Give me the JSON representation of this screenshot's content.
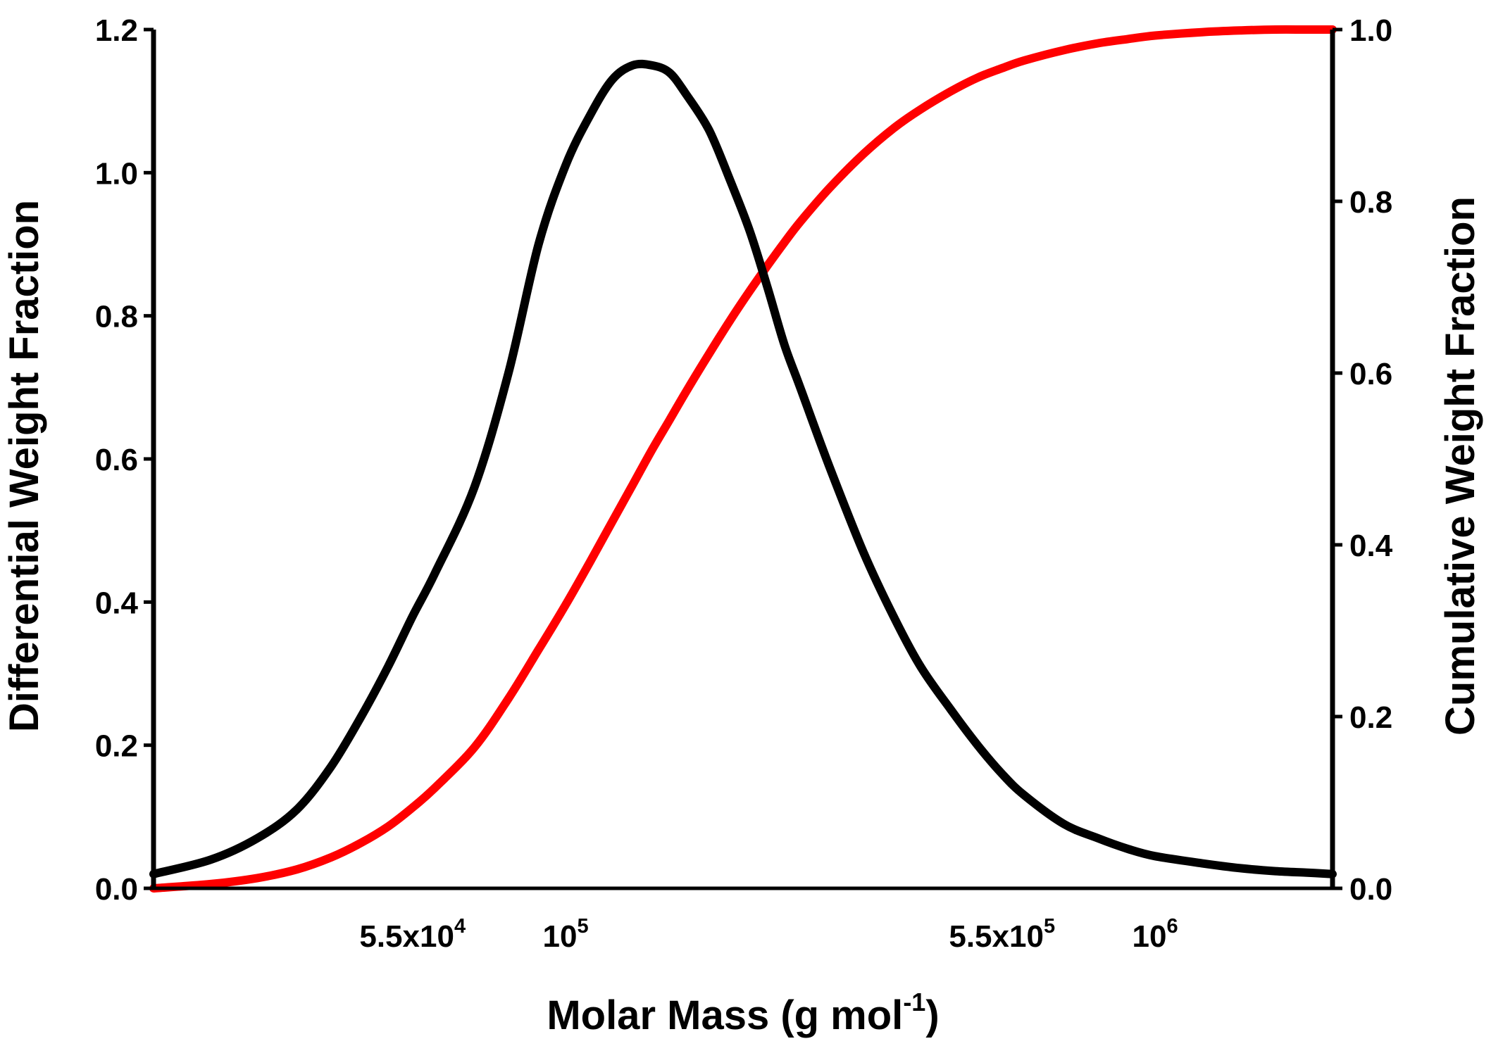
{
  "chart_data": {
    "type": "line",
    "title": "",
    "xlabel": {
      "main": "Molar Mass (g mol",
      "sup": "-1",
      "close": ")"
    },
    "ylabel_left": "Differential Weight Fraction",
    "ylabel_right": "Cumulative Weight Fraction",
    "x_scale": "log",
    "xlim": [
      20000,
      2000000
    ],
    "ylim_left": [
      0,
      1.2
    ],
    "ylim_right": [
      0,
      1.0
    ],
    "x_ticks": [
      {
        "value": 55000,
        "mantissa": "5.5x10",
        "exp": "4"
      },
      {
        "value": 100000,
        "mantissa": "10",
        "exp": "5"
      },
      {
        "value": 550000,
        "mantissa": "5.5x10",
        "exp": "5"
      },
      {
        "value": 1000000,
        "mantissa": "10",
        "exp": "6"
      }
    ],
    "y_ticks_left": [
      "0.0",
      "0.2",
      "0.4",
      "0.6",
      "0.8",
      "1.0",
      "1.2"
    ],
    "y_ticks_right": [
      "0.0",
      "0.2",
      "0.4",
      "0.6",
      "0.8",
      "1.0"
    ],
    "grid": false,
    "series": [
      {
        "axis": "left",
        "color": "#000000",
        "x": [
          20000,
          25000,
          30000,
          35000,
          40000,
          45000,
          50000,
          55000,
          60000,
          70000,
          80000,
          90000,
          100000,
          110000,
          120000,
          130000,
          140000,
          150000,
          160000,
          175000,
          190000,
          205000,
          220000,
          235000,
          250000,
          280000,
          320000,
          360000,
          400000,
          450000,
          500000,
          550000,
          600000,
          700000,
          800000,
          900000,
          1000000,
          1200000,
          1400000,
          1600000,
          1800000,
          2000000
        ],
        "values": [
          0.02,
          0.04,
          0.07,
          0.11,
          0.17,
          0.24,
          0.31,
          0.38,
          0.44,
          0.56,
          0.72,
          0.9,
          1.01,
          1.08,
          1.13,
          1.15,
          1.15,
          1.14,
          1.11,
          1.06,
          0.99,
          0.92,
          0.84,
          0.76,
          0.7,
          0.59,
          0.47,
          0.38,
          0.31,
          0.25,
          0.2,
          0.16,
          0.13,
          0.09,
          0.07,
          0.055,
          0.045,
          0.035,
          0.028,
          0.024,
          0.022,
          0.02
        ]
      },
      {
        "axis": "right",
        "color": "#ff0000",
        "x": [
          20000,
          25000,
          30000,
          35000,
          40000,
          45000,
          50000,
          55000,
          60000,
          70000,
          80000,
          90000,
          100000,
          110000,
          120000,
          130000,
          140000,
          150000,
          160000,
          175000,
          190000,
          205000,
          220000,
          235000,
          250000,
          280000,
          320000,
          360000,
          400000,
          450000,
          500000,
          550000,
          600000,
          700000,
          800000,
          900000,
          1000000,
          1200000,
          1400000,
          1600000,
          1800000,
          2000000
        ],
        "values": [
          0.0,
          0.005,
          0.012,
          0.022,
          0.036,
          0.053,
          0.072,
          0.094,
          0.117,
          0.164,
          0.221,
          0.278,
          0.33,
          0.38,
          0.427,
          0.47,
          0.51,
          0.545,
          0.578,
          0.622,
          0.661,
          0.695,
          0.725,
          0.752,
          0.776,
          0.815,
          0.855,
          0.885,
          0.907,
          0.928,
          0.944,
          0.955,
          0.964,
          0.976,
          0.984,
          0.989,
          0.993,
          0.997,
          0.999,
          1.0,
          1.0,
          1.0
        ]
      }
    ]
  }
}
